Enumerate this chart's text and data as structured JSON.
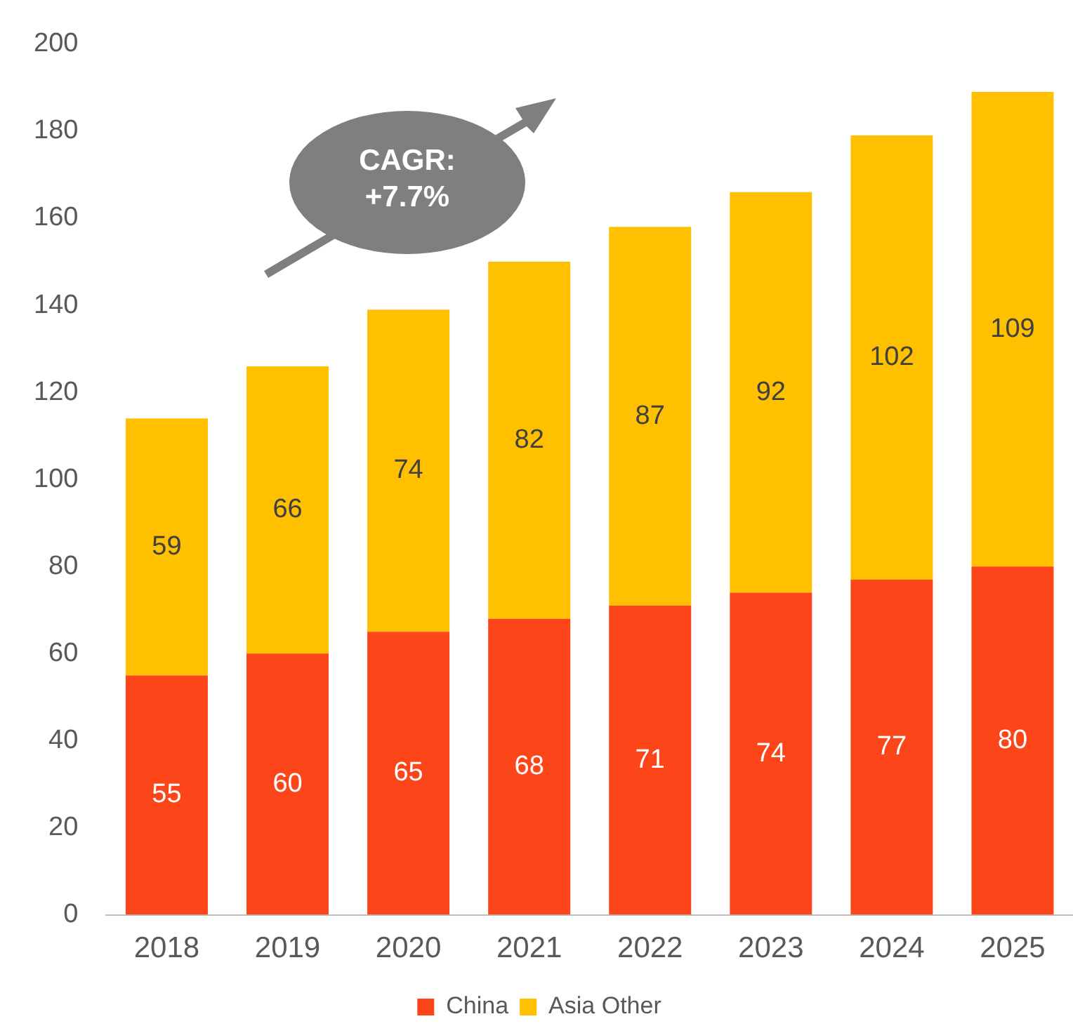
{
  "chart_data": {
    "type": "bar",
    "stacked": true,
    "categories": [
      "2018",
      "2019",
      "2020",
      "2021",
      "2022",
      "2023",
      "2024",
      "2025"
    ],
    "series": [
      {
        "name": "China",
        "color": "#fc4619",
        "values": [
          55,
          60,
          65,
          68,
          71,
          74,
          77,
          80
        ]
      },
      {
        "name": "Asia Other",
        "color": "#ffc000",
        "values": [
          59,
          66,
          74,
          82,
          87,
          92,
          102,
          109
        ]
      }
    ],
    "ylim": [
      0,
      200
    ],
    "yticks": [
      0,
      20,
      40,
      60,
      80,
      100,
      120,
      140,
      160,
      180,
      200
    ],
    "grid": false,
    "legend": "bottom",
    "data_labels": true,
    "annotations": [
      "CAGR: +7.7%"
    ]
  }
}
